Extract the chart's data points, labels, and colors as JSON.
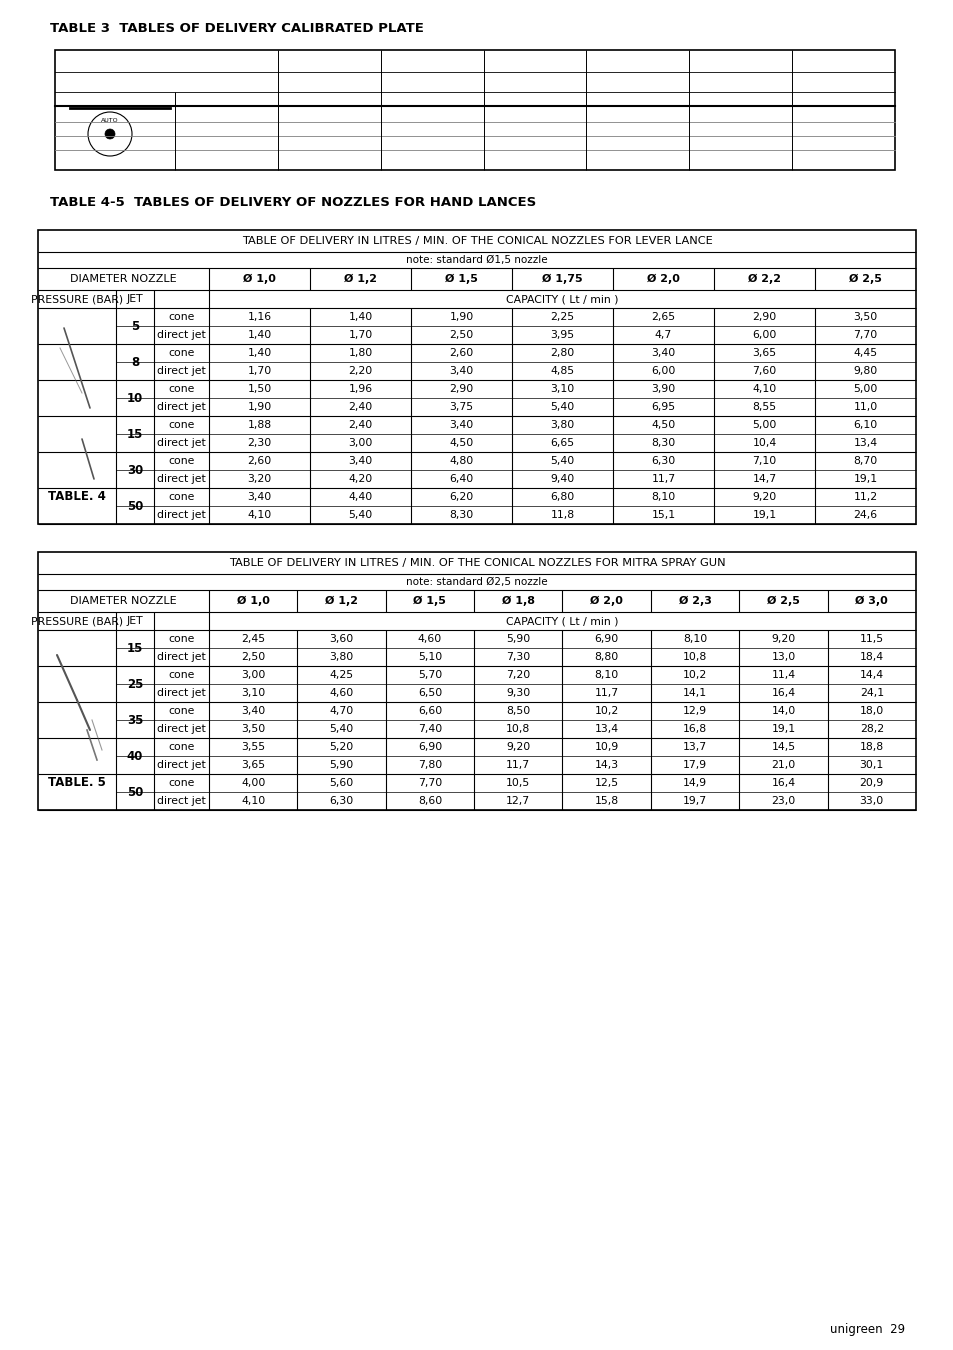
{
  "page_title3": "TABLE 3  TABLES OF DELIVERY CALIBRATED PLATE",
  "page_title45": "TABLE 4-5  TABLES OF DELIVERY OF NOZZLES FOR HAND LANCES",
  "footer": "unigreen  29",
  "table4_title1": "TABLE OF DELIVERY IN LITRES / MIN. OF THE CONICAL NOZZLES FOR LEVER LANCE",
  "table4_title2": "note: standard Ø1,5 nozzle",
  "table4_header1": [
    "DIAMETER NOZZLE",
    "Ø 1,0",
    "Ø 1,2",
    "Ø 1,5",
    "Ø 1,75",
    "Ø 2,0",
    "Ø 2,2",
    "Ø 2,5"
  ],
  "table4_header2": [
    "PRESSURE (BAR)",
    "JET",
    "CAPACITY ( Lt / min )"
  ],
  "table4_pressures": [
    "5",
    "8",
    "10",
    "15",
    "30",
    "50"
  ],
  "table4_data": [
    [
      "5",
      "cone",
      "1,16",
      "1,40",
      "1,90",
      "2,25",
      "2,65",
      "2,90",
      "3,50"
    ],
    [
      "5",
      "direct jet",
      "1,40",
      "1,70",
      "2,50",
      "3,95",
      "4,7",
      "6,00",
      "7,70"
    ],
    [
      "8",
      "cone",
      "1,40",
      "1,80",
      "2,60",
      "2,80",
      "3,40",
      "3,65",
      "4,45"
    ],
    [
      "8",
      "direct jet",
      "1,70",
      "2,20",
      "3,40",
      "4,85",
      "6,00",
      "7,60",
      "9,80"
    ],
    [
      "10",
      "cone",
      "1,50",
      "1,96",
      "2,90",
      "3,10",
      "3,90",
      "4,10",
      "5,00"
    ],
    [
      "10",
      "direct jet",
      "1,90",
      "2,40",
      "3,75",
      "5,40",
      "6,95",
      "8,55",
      "11,0"
    ],
    [
      "15",
      "cone",
      "1,88",
      "2,40",
      "3,40",
      "3,80",
      "4,50",
      "5,00",
      "6,10"
    ],
    [
      "15",
      "direct jet",
      "2,30",
      "3,00",
      "4,50",
      "6,65",
      "8,30",
      "10,4",
      "13,4"
    ],
    [
      "30",
      "cone",
      "2,60",
      "3,40",
      "4,80",
      "5,40",
      "6,30",
      "7,10",
      "8,70"
    ],
    [
      "30",
      "direct jet",
      "3,20",
      "4,20",
      "6,40",
      "9,40",
      "11,7",
      "14,7",
      "19,1"
    ],
    [
      "50",
      "cone",
      "3,40",
      "4,40",
      "6,20",
      "6,80",
      "8,10",
      "9,20",
      "11,2"
    ],
    [
      "50",
      "direct jet",
      "4,10",
      "5,40",
      "8,30",
      "11,8",
      "15,1",
      "19,1",
      "24,6"
    ]
  ],
  "table4_label": "TABLE. 4",
  "table5_title1": "TABLE OF DELIVERY IN LITRES / MIN. OF THE CONICAL NOZZLES FOR MITRA SPRAY GUN",
  "table5_title2": "note: standard Ø2,5 nozzle",
  "table5_header1": [
    "DIAMETER NOZZLE",
    "Ø 1,0",
    "Ø 1,2",
    "Ø 1,5",
    "Ø 1,8",
    "Ø 2,0",
    "Ø 2,3",
    "Ø 2,5",
    "Ø 3,0"
  ],
  "table5_header2": [
    "PRESSURE (BAR)",
    "JET",
    "CAPACITY ( Lt / min )"
  ],
  "table5_pressures": [
    "15",
    "25",
    "35",
    "40",
    "50"
  ],
  "table5_data": [
    [
      "15",
      "cone",
      "2,45",
      "3,60",
      "4,60",
      "5,90",
      "6,90",
      "8,10",
      "9,20",
      "11,5"
    ],
    [
      "15",
      "direct jet",
      "2,50",
      "3,80",
      "5,10",
      "7,30",
      "8,80",
      "10,8",
      "13,0",
      "18,4"
    ],
    [
      "25",
      "cone",
      "3,00",
      "4,25",
      "5,70",
      "7,20",
      "8,10",
      "10,2",
      "11,4",
      "14,4"
    ],
    [
      "25",
      "direct jet",
      "3,10",
      "4,60",
      "6,50",
      "9,30",
      "11,7",
      "14,1",
      "16,4",
      "24,1"
    ],
    [
      "35",
      "cone",
      "3,40",
      "4,70",
      "6,60",
      "8,50",
      "10,2",
      "12,9",
      "14,0",
      "18,0"
    ],
    [
      "35",
      "direct jet",
      "3,50",
      "5,40",
      "7,40",
      "10,8",
      "13,4",
      "16,8",
      "19,1",
      "28,2"
    ],
    [
      "40",
      "cone",
      "3,55",
      "5,20",
      "6,90",
      "9,20",
      "10,9",
      "13,7",
      "14,5",
      "18,8"
    ],
    [
      "40",
      "direct jet",
      "3,65",
      "5,90",
      "7,80",
      "11,7",
      "14,3",
      "17,9",
      "21,0",
      "30,1"
    ],
    [
      "50",
      "cone",
      "4,00",
      "5,60",
      "7,70",
      "10,5",
      "12,5",
      "14,9",
      "16,4",
      "20,9"
    ],
    [
      "50",
      "direct jet",
      "4,10",
      "6,30",
      "8,60",
      "12,7",
      "15,8",
      "19,7",
      "23,0",
      "33,0"
    ]
  ],
  "table5_label": "TABLE. 5",
  "bg_color": "#ffffff"
}
